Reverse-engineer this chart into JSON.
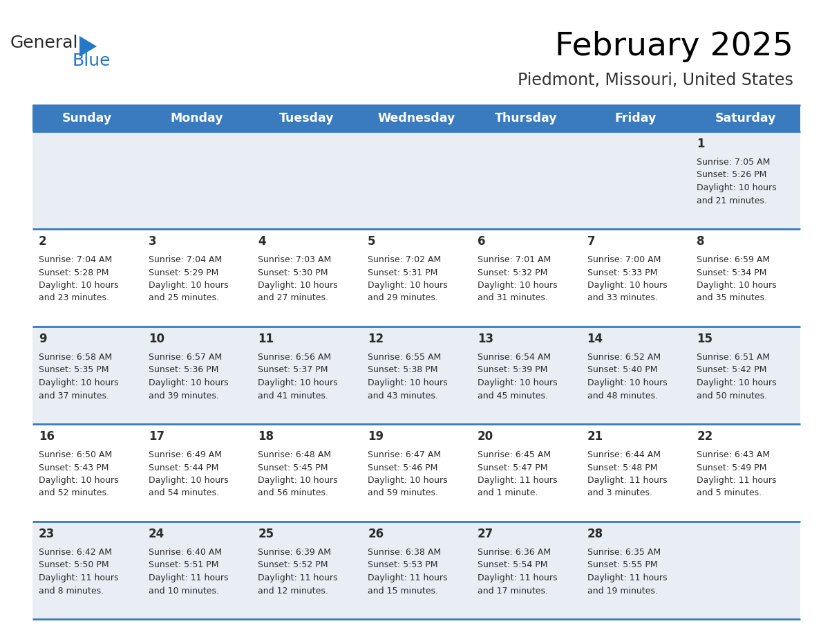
{
  "title": "February 2025",
  "subtitle": "Piedmont, Missouri, United States",
  "header_bg": "#3a7abf",
  "header_text_color": "#ffffff",
  "row_bg_odd": "#e8eef4",
  "row_bg_even": "#ffffff",
  "border_color": "#3a7abf",
  "day_headers": [
    "Sunday",
    "Monday",
    "Tuesday",
    "Wednesday",
    "Thursday",
    "Friday",
    "Saturday"
  ],
  "days": [
    {
      "day": 1,
      "col": 6,
      "row": 0,
      "sunrise": "7:05 AM",
      "sunset": "5:26 PM",
      "daylight": "10 hours and 21 minutes."
    },
    {
      "day": 2,
      "col": 0,
      "row": 1,
      "sunrise": "7:04 AM",
      "sunset": "5:28 PM",
      "daylight": "10 hours and 23 minutes."
    },
    {
      "day": 3,
      "col": 1,
      "row": 1,
      "sunrise": "7:04 AM",
      "sunset": "5:29 PM",
      "daylight": "10 hours and 25 minutes."
    },
    {
      "day": 4,
      "col": 2,
      "row": 1,
      "sunrise": "7:03 AM",
      "sunset": "5:30 PM",
      "daylight": "10 hours and 27 minutes."
    },
    {
      "day": 5,
      "col": 3,
      "row": 1,
      "sunrise": "7:02 AM",
      "sunset": "5:31 PM",
      "daylight": "10 hours and 29 minutes."
    },
    {
      "day": 6,
      "col": 4,
      "row": 1,
      "sunrise": "7:01 AM",
      "sunset": "5:32 PM",
      "daylight": "10 hours and 31 minutes."
    },
    {
      "day": 7,
      "col": 5,
      "row": 1,
      "sunrise": "7:00 AM",
      "sunset": "5:33 PM",
      "daylight": "10 hours and 33 minutes."
    },
    {
      "day": 8,
      "col": 6,
      "row": 1,
      "sunrise": "6:59 AM",
      "sunset": "5:34 PM",
      "daylight": "10 hours and 35 minutes."
    },
    {
      "day": 9,
      "col": 0,
      "row": 2,
      "sunrise": "6:58 AM",
      "sunset": "5:35 PM",
      "daylight": "10 hours and 37 minutes."
    },
    {
      "day": 10,
      "col": 1,
      "row": 2,
      "sunrise": "6:57 AM",
      "sunset": "5:36 PM",
      "daylight": "10 hours and 39 minutes."
    },
    {
      "day": 11,
      "col": 2,
      "row": 2,
      "sunrise": "6:56 AM",
      "sunset": "5:37 PM",
      "daylight": "10 hours and 41 minutes."
    },
    {
      "day": 12,
      "col": 3,
      "row": 2,
      "sunrise": "6:55 AM",
      "sunset": "5:38 PM",
      "daylight": "10 hours and 43 minutes."
    },
    {
      "day": 13,
      "col": 4,
      "row": 2,
      "sunrise": "6:54 AM",
      "sunset": "5:39 PM",
      "daylight": "10 hours and 45 minutes."
    },
    {
      "day": 14,
      "col": 5,
      "row": 2,
      "sunrise": "6:52 AM",
      "sunset": "5:40 PM",
      "daylight": "10 hours and 48 minutes."
    },
    {
      "day": 15,
      "col": 6,
      "row": 2,
      "sunrise": "6:51 AM",
      "sunset": "5:42 PM",
      "daylight": "10 hours and 50 minutes."
    },
    {
      "day": 16,
      "col": 0,
      "row": 3,
      "sunrise": "6:50 AM",
      "sunset": "5:43 PM",
      "daylight": "10 hours and 52 minutes."
    },
    {
      "day": 17,
      "col": 1,
      "row": 3,
      "sunrise": "6:49 AM",
      "sunset": "5:44 PM",
      "daylight": "10 hours and 54 minutes."
    },
    {
      "day": 18,
      "col": 2,
      "row": 3,
      "sunrise": "6:48 AM",
      "sunset": "5:45 PM",
      "daylight": "10 hours and 56 minutes."
    },
    {
      "day": 19,
      "col": 3,
      "row": 3,
      "sunrise": "6:47 AM",
      "sunset": "5:46 PM",
      "daylight": "10 hours and 59 minutes."
    },
    {
      "day": 20,
      "col": 4,
      "row": 3,
      "sunrise": "6:45 AM",
      "sunset": "5:47 PM",
      "daylight": "11 hours and 1 minute."
    },
    {
      "day": 21,
      "col": 5,
      "row": 3,
      "sunrise": "6:44 AM",
      "sunset": "5:48 PM",
      "daylight": "11 hours and 3 minutes."
    },
    {
      "day": 22,
      "col": 6,
      "row": 3,
      "sunrise": "6:43 AM",
      "sunset": "5:49 PM",
      "daylight": "11 hours and 5 minutes."
    },
    {
      "day": 23,
      "col": 0,
      "row": 4,
      "sunrise": "6:42 AM",
      "sunset": "5:50 PM",
      "daylight": "11 hours and 8 minutes."
    },
    {
      "day": 24,
      "col": 1,
      "row": 4,
      "sunrise": "6:40 AM",
      "sunset": "5:51 PM",
      "daylight": "11 hours and 10 minutes."
    },
    {
      "day": 25,
      "col": 2,
      "row": 4,
      "sunrise": "6:39 AM",
      "sunset": "5:52 PM",
      "daylight": "11 hours and 12 minutes."
    },
    {
      "day": 26,
      "col": 3,
      "row": 4,
      "sunrise": "6:38 AM",
      "sunset": "5:53 PM",
      "daylight": "11 hours and 15 minutes."
    },
    {
      "day": 27,
      "col": 4,
      "row": 4,
      "sunrise": "6:36 AM",
      "sunset": "5:54 PM",
      "daylight": "11 hours and 17 minutes."
    },
    {
      "day": 28,
      "col": 5,
      "row": 4,
      "sunrise": "6:35 AM",
      "sunset": "5:55 PM",
      "daylight": "11 hours and 19 minutes."
    }
  ],
  "num_rows": 5,
  "logo_general_color": "#2b2b2b",
  "logo_blue_color": "#2577c8",
  "logo_triangle_color": "#2577c8"
}
